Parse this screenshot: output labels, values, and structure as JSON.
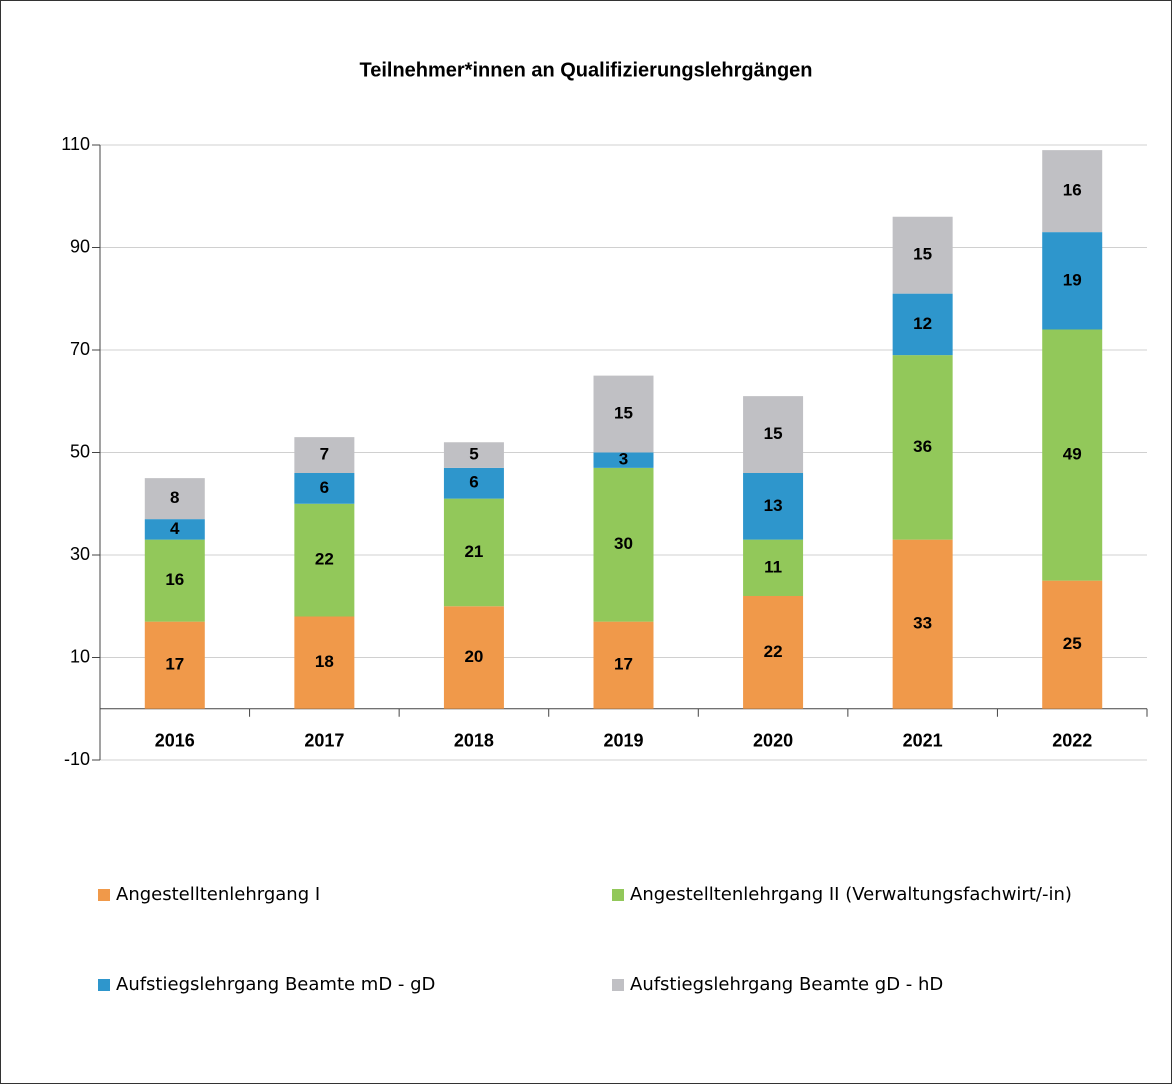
{
  "chart_data": {
    "type": "stacked_bar",
    "title": "Teilnehmer*innen an Qualifizierungslehrgängen",
    "categories": [
      "2016",
      "2017",
      "2018",
      "2019",
      "2020",
      "2021",
      "2022"
    ],
    "series": [
      {
        "name": "Angestelltenlehrgang I",
        "color": "#f0994a",
        "values": [
          17,
          18,
          20,
          17,
          22,
          33,
          25
        ]
      },
      {
        "name": "Angestelltenlehrgang II (Verwaltungsfachwirt/-in)",
        "color": "#92c85a",
        "values": [
          16,
          22,
          21,
          30,
          11,
          36,
          49
        ]
      },
      {
        "name": "Aufstiegslehrgang Beamte mD - gD",
        "color": "#2e96cc",
        "values": [
          4,
          6,
          6,
          3,
          13,
          12,
          19
        ]
      },
      {
        "name": "Aufstiegslehrgang Beamte gD - hD",
        "color": "#c0c0c4",
        "values": [
          8,
          7,
          5,
          15,
          15,
          15,
          16
        ]
      }
    ],
    "ylim": [
      -10,
      110
    ],
    "yticks": [
      -10,
      10,
      30,
      50,
      70,
      90,
      110
    ],
    "grid": true
  }
}
